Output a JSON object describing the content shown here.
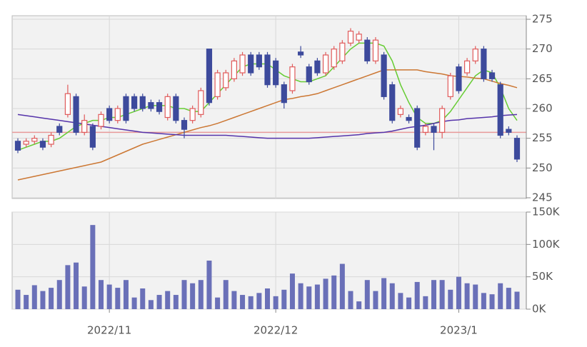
{
  "chart_data": [
    {
      "type": "candlestick",
      "up_color": "#e05a5a",
      "down_color": "#3d4a9c",
      "open": [
        254.5,
        254,
        254.5,
        254.5,
        254,
        257,
        259,
        262,
        256,
        257,
        257,
        260,
        258,
        262,
        262,
        262,
        261,
        261,
        258.5,
        262,
        258,
        258,
        259,
        270,
        262,
        263.5,
        265,
        266,
        269,
        269,
        269,
        268,
        264,
        263,
        269.5,
        267,
        268,
        266,
        267,
        268,
        271,
        271.5,
        271.5,
        268,
        269,
        264,
        259,
        258.5,
        260,
        256,
        257,
        256,
        262,
        267,
        266,
        268,
        270,
        266,
        264,
        256.5,
        255
      ],
      "high": [
        255,
        255,
        255.5,
        255,
        256,
        257.5,
        264,
        262.5,
        259,
        257.5,
        259.5,
        260.5,
        260.5,
        262.5,
        262.5,
        262.5,
        261.5,
        261.5,
        262.5,
        262.5,
        258.5,
        260.5,
        263.5,
        270,
        266.5,
        266.5,
        268.5,
        269.5,
        269.5,
        269.5,
        269.5,
        268.5,
        264.5,
        267.5,
        270.5,
        267.5,
        268.5,
        269.5,
        270.5,
        271.5,
        273.5,
        273,
        272,
        272,
        269.5,
        264.5,
        260.5,
        259,
        260.5,
        257.5,
        257.5,
        260.5,
        266,
        267.5,
        268.5,
        270.5,
        270.5,
        266.5,
        264.5,
        257,
        255.5
      ],
      "low": [
        252.5,
        253.5,
        254,
        253,
        253.5,
        255.5,
        258.5,
        255.5,
        255.5,
        253,
        256.5,
        257.5,
        257.5,
        257.5,
        259.5,
        259.5,
        259.5,
        259,
        258,
        257.5,
        255,
        257.5,
        258.5,
        260.5,
        261.5,
        263,
        264.5,
        265.5,
        265.5,
        266.5,
        263.5,
        263.5,
        260,
        262.5,
        268.5,
        264,
        265.5,
        265.5,
        266.5,
        267.5,
        270.5,
        271,
        267.5,
        267.5,
        261.5,
        257.5,
        258.5,
        257.5,
        253,
        255.5,
        253,
        255,
        261.5,
        262.5,
        265.5,
        267.5,
        264.5,
        264.5,
        255,
        255.5,
        251
      ],
      "close": [
        253,
        254.5,
        255,
        253.5,
        255.5,
        256,
        262.5,
        256,
        258,
        253.5,
        259,
        258,
        260,
        258,
        260,
        260,
        260,
        259.5,
        262,
        258,
        256.5,
        260,
        263,
        261,
        266,
        266,
        268,
        269,
        266,
        267,
        264,
        264,
        261,
        267,
        269,
        264.5,
        266,
        269,
        270,
        271,
        273,
        272.5,
        268,
        271.5,
        262,
        258,
        260,
        258,
        253.5,
        257,
        256,
        260,
        265.5,
        263,
        268,
        270,
        265,
        265,
        255.5,
        256,
        251.5
      ],
      "lines": [
        {
          "color": "#66cc33",
          "values": [
            253,
            253.5,
            254,
            254.5,
            254.5,
            255,
            256,
            257,
            257.5,
            258,
            258,
            258.5,
            258.5,
            259,
            259.5,
            260,
            260.5,
            260.5,
            260.5,
            260,
            260,
            259.5,
            259.5,
            261,
            262.5,
            264,
            265.5,
            267,
            267.5,
            267.5,
            267.5,
            266.5,
            265.5,
            265,
            264.5,
            264.5,
            265,
            265.5,
            267,
            268.5,
            270,
            271,
            271,
            271,
            270.5,
            268,
            264,
            261,
            258.5,
            257.5,
            257.5,
            258,
            259.5,
            261.5,
            263.5,
            265.5,
            266.5,
            266,
            263.5,
            260,
            258
          ]
        },
        {
          "color": "#cc7733",
          "values": [
            248,
            248.3,
            248.6,
            248.9,
            249.2,
            249.5,
            249.8,
            250.1,
            250.4,
            250.7,
            251,
            251.6,
            252.2,
            252.8,
            253.4,
            254,
            254.4,
            254.8,
            255.2,
            255.6,
            256,
            256.4,
            256.8,
            257.1,
            257.5,
            258,
            258.5,
            259,
            259.5,
            260,
            260.5,
            261,
            261.5,
            261.7,
            262,
            262.2,
            262.5,
            263,
            263.5,
            264,
            264.5,
            265,
            265.5,
            266,
            266.5,
            266.5,
            266.5,
            266.5,
            266.5,
            266.2,
            266,
            265.8,
            265.5,
            265.4,
            265.3,
            265.1,
            265,
            264.6,
            264.2,
            263.9,
            263.5
          ]
        },
        {
          "color": "#5533aa",
          "values": [
            259,
            258.8,
            258.6,
            258.4,
            258.2,
            258,
            257.8,
            257.6,
            257.4,
            257.2,
            257,
            256.8,
            256.6,
            256.4,
            256.2,
            256,
            255.9,
            255.8,
            255.7,
            255.6,
            255.5,
            255.5,
            255.5,
            255.5,
            255.5,
            255.5,
            255.4,
            255.3,
            255.2,
            255.1,
            255,
            255,
            255,
            255,
            255,
            255,
            255.1,
            255.2,
            255.3,
            255.4,
            255.5,
            255.6,
            255.8,
            255.9,
            256,
            256.2,
            256.5,
            256.8,
            257,
            257.2,
            257.5,
            257.8,
            258,
            258.1,
            258.3,
            258.4,
            258.5,
            258.6,
            258.8,
            258.9,
            259
          ]
        }
      ],
      "hlines": [
        {
          "value": 256,
          "color": "#e89a9a"
        }
      ],
      "ylim": [
        245,
        275
      ],
      "yticks": [
        245,
        250,
        255,
        260,
        265,
        270,
        275
      ],
      "grid": true,
      "xticks": [
        {
          "value": 11,
          "label": "2022/11"
        },
        {
          "value": 31,
          "label": "2022/12"
        },
        {
          "value": 53,
          "label": "2023/1"
        }
      ]
    },
    {
      "type": "bar",
      "color": "#6a70b8",
      "values": [
        30000,
        22000,
        37000,
        28000,
        33000,
        45000,
        68000,
        72000,
        35000,
        130000,
        45000,
        38000,
        33000,
        45000,
        18000,
        32000,
        14000,
        22000,
        28000,
        22000,
        45000,
        40000,
        45000,
        75000,
        18000,
        45000,
        28000,
        22000,
        20000,
        25000,
        32000,
        20000,
        30000,
        55000,
        40000,
        35000,
        38000,
        47000,
        52000,
        70000,
        28000,
        12000,
        45000,
        28000,
        48000,
        40000,
        25000,
        18000,
        42000,
        20000,
        45000,
        45000,
        30000,
        50000,
        40000,
        38000,
        25000,
        23000,
        40000,
        33000,
        27000
      ],
      "ylim": [
        0,
        150000
      ],
      "yticks": [
        {
          "value": 0,
          "label": "0K"
        },
        {
          "value": 50000,
          "label": "50K"
        },
        {
          "value": 100000,
          "label": "100K"
        },
        {
          "value": 150000,
          "label": "150K"
        }
      ],
      "grid": true
    }
  ]
}
